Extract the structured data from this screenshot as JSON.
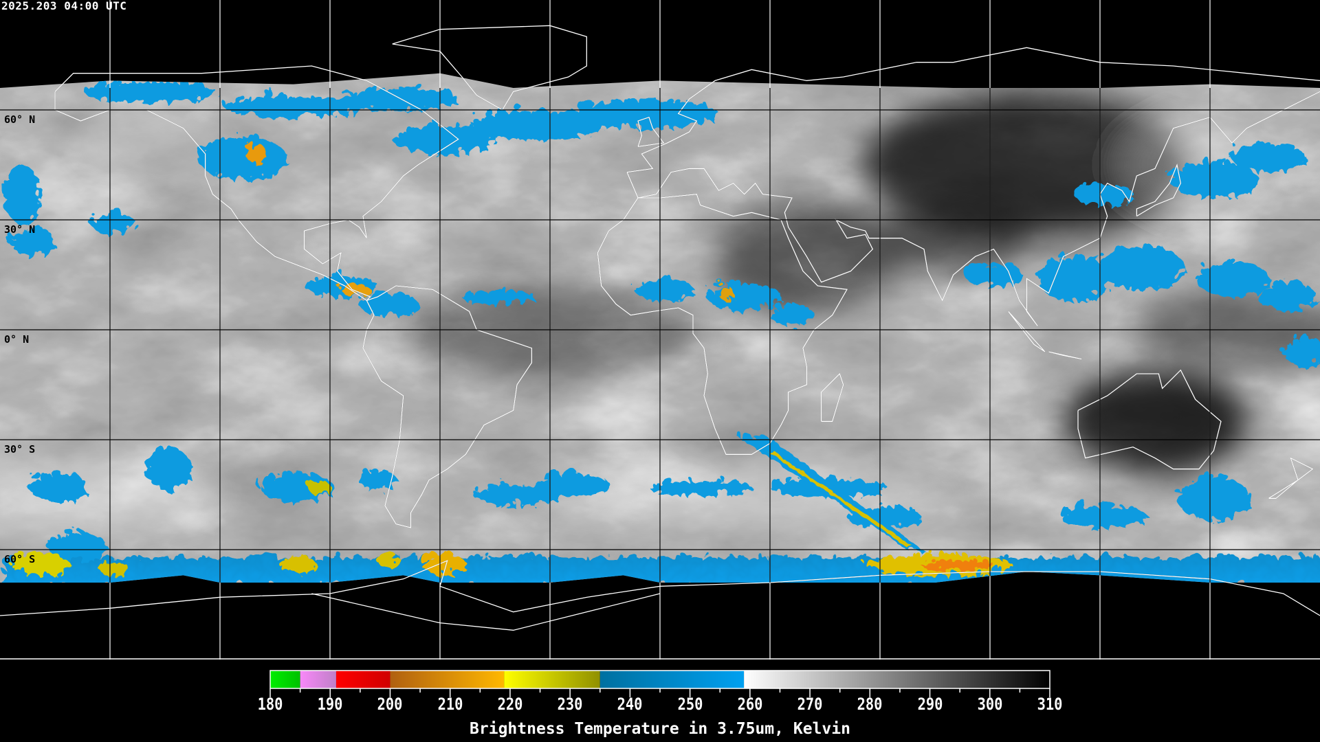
{
  "header": {
    "timestamp": "2025.203 04:00 UTC"
  },
  "map": {
    "grid_spacing_deg": 30,
    "lat_labels": [
      {
        "lat": 60,
        "text": "60° N"
      },
      {
        "lat": 30,
        "text": "30° N"
      },
      {
        "lat": 0,
        "text": "0° N"
      },
      {
        "lat": -30,
        "text": "30° S"
      },
      {
        "lat": -60,
        "text": "60° S"
      }
    ]
  },
  "colorbar": {
    "title": "Brightness Temperature in 3.75um, Kelvin",
    "min": 180,
    "max": 310,
    "tick_labels": [
      "180",
      "190",
      "200",
      "210",
      "220",
      "230",
      "240",
      "250",
      "260",
      "270",
      "280",
      "290",
      "300",
      "310"
    ],
    "segments": [
      {
        "from": 180,
        "to": 185,
        "colors": [
          "#00ee00",
          "#00c000"
        ]
      },
      {
        "from": 185,
        "to": 191,
        "colors": [
          "#f888f8",
          "#c080c8"
        ]
      },
      {
        "from": 191,
        "to": 200,
        "colors": [
          "#ff0000",
          "#d00000"
        ]
      },
      {
        "from": 200,
        "to": 219,
        "colors": [
          "#b06010",
          "#ffb800"
        ]
      },
      {
        "from": 219,
        "to": 235,
        "colors": [
          "#ffff00",
          "#909000"
        ]
      },
      {
        "from": 235,
        "to": 259,
        "colors": [
          "#0070a0",
          "#00a0f0"
        ]
      },
      {
        "from": 259,
        "to": 310,
        "colors": [
          "#ffffff",
          "#000000"
        ]
      }
    ]
  }
}
